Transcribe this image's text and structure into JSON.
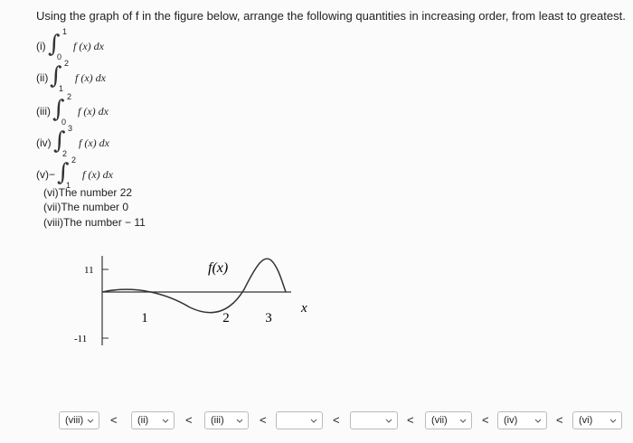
{
  "question": "Using the graph of f in the figure below, arrange the following quantities in increasing order, from least to greatest.",
  "integral_symbol": "∫",
  "integrals": [
    {
      "label": "(i)",
      "lower": "0",
      "upper": "1",
      "integrand": "f (x) dx"
    },
    {
      "label": "(ii)",
      "lower": "1",
      "upper": "2",
      "integrand": "f (x) dx"
    },
    {
      "label": "(iii)",
      "lower": "0",
      "upper": "2",
      "integrand": "f (x) dx"
    },
    {
      "label": "(iv)",
      "lower": "2",
      "upper": "3",
      "integrand": "f (x) dx"
    },
    {
      "label": "(v)−",
      "lower": "1",
      "upper": "2",
      "integrand": "f (x) dx"
    }
  ],
  "numbers": [
    "(vi)The number 22",
    "(vii)The number 0",
    "(viii)The number − 11"
  ],
  "graph": {
    "y_labels": [
      "11",
      "-11"
    ],
    "x_labels": [
      "1",
      "2",
      "3"
    ],
    "curve_label": "f(x)",
    "axis_label": "x"
  },
  "answer": {
    "selections": [
      "(viii)",
      "(ii)",
      "(iii)",
      null,
      null,
      "(vii)",
      "(iv)",
      "(vi)"
    ],
    "separator": "<"
  }
}
